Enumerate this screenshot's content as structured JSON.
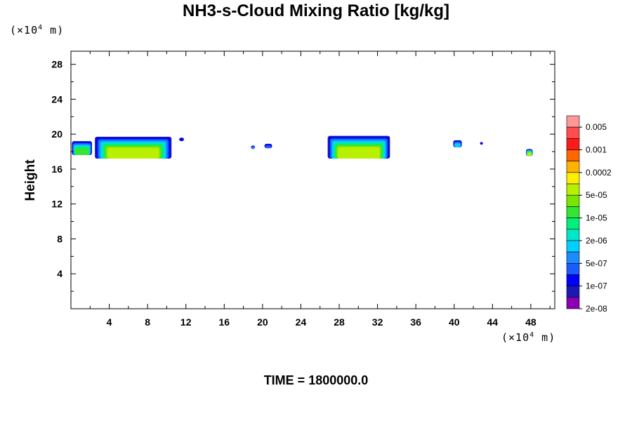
{
  "title": "NH3-s-Cloud Mixing Ratio [kg/kg]",
  "footer": "TIME = 1800000.0",
  "colors": {
    "axis": "#000000",
    "scale": [
      "#8b00b3",
      "#1a1ab3",
      "#0000ff",
      "#1a5cff",
      "#1a8cff",
      "#00d0ff",
      "#00e6c8",
      "#00f07a",
      "#33e633",
      "#7ae600",
      "#b8f000",
      "#ffee00",
      "#ffb300",
      "#ff6600",
      "#ff1a1a",
      "#ff4d4d",
      "#ff9999"
    ]
  },
  "chart_data": {
    "type": "heatmap",
    "ylabel": "Height",
    "y_unit": {
      "prefix": "(×10",
      "exp": "4",
      "suffix": " m)"
    },
    "x_unit": {
      "prefix": "(×10",
      "exp": "4",
      "suffix": " m)"
    },
    "xlim": [
      0,
      50.5
    ],
    "ylim": [
      0,
      29.5
    ],
    "x_ticks": [
      4,
      8,
      12,
      16,
      20,
      24,
      28,
      32,
      36,
      40,
      44,
      48
    ],
    "x_tick_labels": [
      "4",
      "8",
      "12",
      "16",
      "20",
      "24",
      "28",
      "32",
      "36",
      "40",
      "44",
      "48"
    ],
    "y_ticks": [
      4,
      8,
      12,
      16,
      20,
      24,
      28
    ],
    "y_tick_labels": [
      "4",
      "8",
      "12",
      "16",
      "20",
      "24",
      "28"
    ],
    "colorbar_labels": [
      "0.005",
      "0.001",
      "0.0002",
      "5e-05",
      "1e-05",
      "2e-06",
      "5e-07",
      "1e-07",
      "2e-08"
    ],
    "cloud_layers": [
      {
        "x0": 0.1,
        "x1": 2.2,
        "y0": 17.6,
        "y1": 19.2,
        "level": 7
      },
      {
        "x0": 2.5,
        "x1": 10.5,
        "y0": 17.2,
        "y1": 19.7,
        "level": 9
      },
      {
        "x0": 11.3,
        "x1": 11.8,
        "y0": 19.2,
        "y1": 19.6,
        "level": 1
      },
      {
        "x0": 18.8,
        "x1": 19.2,
        "y0": 18.3,
        "y1": 18.7,
        "level": 3
      },
      {
        "x0": 20.2,
        "x1": 21.0,
        "y0": 18.4,
        "y1": 18.9,
        "level": 2
      },
      {
        "x0": 26.8,
        "x1": 33.3,
        "y0": 17.2,
        "y1": 19.8,
        "level": 9
      },
      {
        "x0": 39.9,
        "x1": 40.8,
        "y0": 18.5,
        "y1": 19.3,
        "level": 4
      },
      {
        "x0": 42.7,
        "x1": 43.0,
        "y0": 18.8,
        "y1": 19.1,
        "level": 1
      },
      {
        "x0": 47.5,
        "x1": 48.2,
        "y0": 17.5,
        "y1": 18.3,
        "level": 9
      }
    ]
  }
}
